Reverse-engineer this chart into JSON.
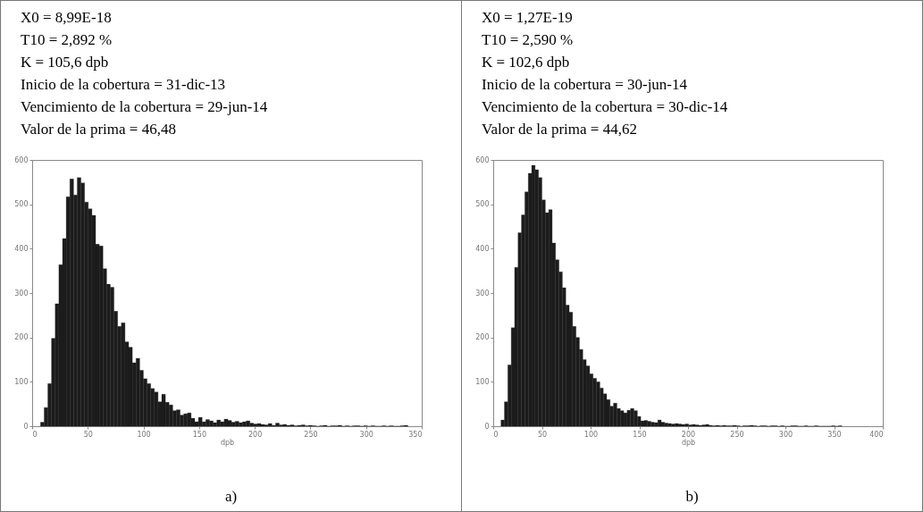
{
  "chart_data": [
    {
      "type": "histogram",
      "annotations": [
        "X0 = 8,99E-18",
        "T10 = 2,892 %",
        "K = 105,6 dpb",
        "Inicio de la cobertura = 31-dic-13",
        "Vencimiento de la cobertura = 29-jun-14",
        "Valor de la prima = 46,48",
        "a)"
      ],
      "xlabel": "dpb",
      "color": "#1c1c1c",
      "grid": false,
      "xlim": [
        0,
        350
      ],
      "xticks": [
        0,
        50,
        100,
        150,
        200,
        250,
        300,
        350
      ],
      "ylim": [
        0,
        600
      ],
      "yticks": [
        0,
        100,
        200,
        300,
        400,
        500,
        600
      ],
      "bins": [
        7.5,
        10.8,
        14.1,
        17.4,
        20.7,
        24,
        27.3,
        30.6,
        33.9,
        37.2,
        40.5,
        43.8,
        47.1,
        50.4,
        53.7,
        57,
        60.3,
        63.6,
        66.9,
        70.2,
        73.5,
        76.8,
        80.1,
        83.4,
        86.7,
        90,
        93.3,
        96.6,
        99.9,
        103.2,
        106.5,
        109.8,
        113.1,
        116.4,
        119.7,
        123,
        126.3,
        129.6,
        132.9,
        136.2,
        139.5,
        142.8,
        146.1,
        149.4,
        152.7,
        156,
        159.3,
        162.6,
        165.9,
        169.2,
        172.5,
        175.8,
        179.1,
        182.4,
        185.7,
        189,
        192.3,
        195.6,
        198.9,
        202.2,
        205.5,
        208.8,
        212.1,
        215.4,
        218.7,
        222,
        225.3,
        228.6,
        231.9,
        235.2,
        238.5,
        241.8,
        245.1,
        248.4,
        251.7,
        255,
        258.3,
        261.6,
        264.9,
        268.2,
        271.5,
        274.8,
        278.1,
        281.4,
        284.7,
        288,
        291.3,
        294.6,
        297.9,
        301.2,
        304.5,
        307.8,
        311.1,
        314.4,
        317.7,
        321,
        324.3,
        327.6,
        330.9,
        334.2,
        337.5
      ],
      "values": [
        9,
        42,
        96,
        198,
        276,
        364,
        423,
        517,
        557,
        521,
        560,
        548,
        505,
        490,
        475,
        410,
        406,
        355,
        320,
        313,
        259,
        225,
        233,
        190,
        178,
        143,
        153,
        126,
        107,
        96,
        85,
        77,
        55,
        72,
        54,
        48,
        35,
        37,
        25,
        28,
        30,
        18,
        10,
        20,
        10,
        15,
        12,
        8,
        14,
        10,
        16,
        13,
        9,
        11,
        8,
        10,
        12,
        7,
        5,
        6,
        4,
        3,
        6,
        2,
        7,
        3,
        4,
        2,
        3,
        1,
        2,
        3,
        1,
        2,
        1,
        0,
        1,
        2,
        0,
        1,
        1,
        2,
        0,
        1,
        0,
        1,
        1,
        0,
        1,
        0,
        1,
        0,
        0,
        1,
        0,
        1,
        0,
        0,
        1,
        2
      ]
    },
    {
      "type": "histogram",
      "annotations": [
        "X0 = 1,27E-19",
        "T10 = 2,590 %",
        "K = 102,6 dpb",
        "Inicio de la cobertura = 30-jun-14",
        "Vencimiento de la cobertura = 30-dic-14",
        "Valor de la prima = 44,62",
        "b)"
      ],
      "xlabel": "dpb",
      "color": "#1c1c1c",
      "grid": false,
      "xlim": [
        0,
        400
      ],
      "xticks": [
        0,
        50,
        100,
        150,
        200,
        250,
        300,
        350,
        400
      ],
      "ylim": [
        0,
        600
      ],
      "yticks": [
        0,
        100,
        200,
        300,
        400,
        500,
        600
      ],
      "bins": [
        8,
        11.5,
        15,
        18.5,
        22,
        25.5,
        29,
        32.5,
        36,
        39.5,
        43,
        46.5,
        50,
        53.5,
        57,
        60.5,
        64,
        67.5,
        71,
        74.5,
        78,
        81.5,
        85,
        88.5,
        92,
        95.5,
        99,
        102.5,
        106,
        109.5,
        113,
        116.5,
        120,
        123.5,
        127,
        130.5,
        134,
        137.5,
        141,
        144.5,
        148,
        151.5,
        155,
        158.5,
        162,
        165.5,
        169,
        172.5,
        176,
        179.5,
        183,
        186.5,
        190,
        193.5,
        197,
        200.5,
        204,
        207.5,
        211,
        214.5,
        218,
        221.5,
        225,
        228.5,
        232,
        235.5,
        239,
        242.5,
        246,
        249.5,
        253,
        256.5,
        260,
        263.5,
        267,
        270.5,
        274,
        277.5,
        281,
        284.5,
        288,
        291.5,
        295,
        298.5,
        302,
        305.5,
        309,
        312.5,
        316,
        319.5,
        323,
        326.5,
        330,
        333.5,
        337,
        340.5,
        344,
        347.5,
        351,
        354.5,
        358
      ],
      "values": [
        14,
        55,
        138,
        222,
        358,
        436,
        476,
        528,
        570,
        588,
        578,
        560,
        510,
        481,
        488,
        413,
        375,
        348,
        312,
        273,
        257,
        225,
        200,
        173,
        150,
        136,
        118,
        108,
        100,
        86,
        73,
        60,
        45,
        52,
        40,
        35,
        30,
        36,
        40,
        35,
        22,
        12,
        13,
        11,
        9,
        8,
        14,
        9,
        7,
        6,
        5,
        6,
        5,
        4,
        5,
        3,
        4,
        3,
        2,
        3,
        4,
        2,
        1,
        2,
        1,
        2,
        1,
        1,
        2,
        1,
        0,
        1,
        1,
        2,
        1,
        0,
        1,
        1,
        0,
        1,
        1,
        0,
        1,
        0,
        0,
        1,
        1,
        0,
        0,
        1,
        0,
        0,
        1,
        0,
        0,
        0,
        0,
        1,
        0,
        1
      ]
    }
  ]
}
